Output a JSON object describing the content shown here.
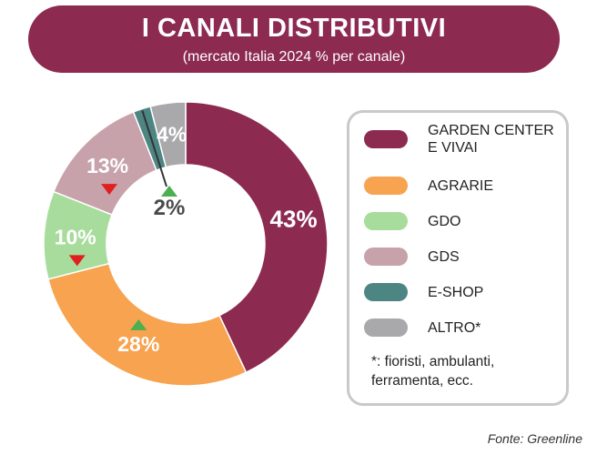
{
  "header": {
    "title": "I CANALI DISTRIBUTIVI",
    "subtitle": "(mercato Italia 2024 % per canale)"
  },
  "chart_data": {
    "type": "pie",
    "title": "I CANALI DISTRIBUTIVI",
    "subtitle": "(mercato Italia 2024 % per canale)",
    "donut": true,
    "categories": [
      "GARDEN CENTER E VIVAI",
      "AGRARIE",
      "GDO",
      "GDS",
      "E-SHOP",
      "ALTRO*"
    ],
    "values": [
      43,
      28,
      10,
      13,
      2,
      4
    ],
    "value_labels": [
      "43%",
      "28%",
      "10%",
      "13%",
      "2%",
      "4%"
    ],
    "colors": [
      "#8c2a50",
      "#f7a350",
      "#a7dc9c",
      "#c8a2aa",
      "#4d8583",
      "#a9a9ab"
    ],
    "trend": [
      "none",
      "up",
      "down",
      "down",
      "up",
      "none"
    ],
    "trend_colors": {
      "up": "#4caf50",
      "down": "#e02020"
    },
    "legend_placement": "right",
    "legend_note": "*: fioristi, ambulanti, ferramenta, ecc.",
    "source": "Fonte: Greenline"
  },
  "legend": {
    "items": [
      {
        "label": "GARDEN CENTER E VIVAI",
        "color": "#8c2a50"
      },
      {
        "label": "AGRARIE",
        "color": "#f7a350"
      },
      {
        "label": "GDO",
        "color": "#a7dc9c"
      },
      {
        "label": "GDS",
        "color": "#c8a2aa"
      },
      {
        "label": "E-SHOP",
        "color": "#4d8583"
      },
      {
        "label": "ALTRO*",
        "color": "#a9a9ab"
      }
    ],
    "note": "*: fioristi, ambulanti, ferramenta, ecc."
  },
  "source": "Fonte: Greenline"
}
